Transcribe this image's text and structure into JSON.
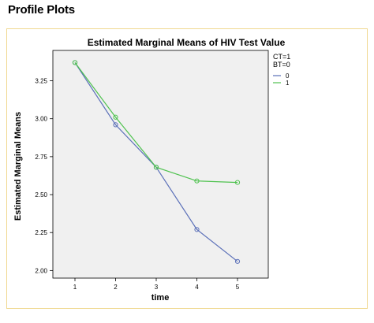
{
  "page": {
    "heading": "Profile Plots"
  },
  "chart_data": {
    "type": "line",
    "title": "Estimated Marginal Means of HIV Test Value",
    "xlabel": "time",
    "ylabel": "Estimated Marginal Means",
    "categories": [
      "1",
      "2",
      "3",
      "4",
      "5"
    ],
    "ylim": [
      1.95,
      3.45
    ],
    "yticks": [
      2.0,
      2.25,
      2.5,
      2.75,
      3.0,
      3.25
    ],
    "ytick_labels": [
      "2.00",
      "2.25",
      "2.50",
      "2.75",
      "3.00",
      "3.25"
    ],
    "grid": false,
    "legend_position": "right",
    "legend_header": [
      "CT=1",
      "BT=0"
    ],
    "series": [
      {
        "name": "0",
        "color": "#5a6fb8",
        "values": [
          3.37,
          2.96,
          2.68,
          2.27,
          2.06
        ]
      },
      {
        "name": "1",
        "color": "#4fc24f",
        "values": [
          3.37,
          3.01,
          2.68,
          2.59,
          2.58
        ]
      }
    ]
  }
}
